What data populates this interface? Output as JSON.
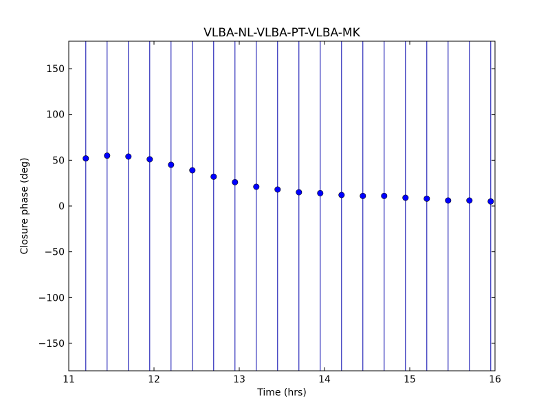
{
  "chart_data": {
    "type": "scatter",
    "title": "VLBA-NL-VLBA-PT-VLBA-MK",
    "xlabel": "Time (hrs)",
    "ylabel": "Closure phase (deg)",
    "xlim": [
      11,
      16
    ],
    "ylim": [
      -180,
      180
    ],
    "xticks": [
      11,
      12,
      13,
      14,
      15,
      16
    ],
    "yticks": [
      -150,
      -100,
      -50,
      0,
      50,
      100,
      150
    ],
    "ytick_labels": [
      "−150",
      "−100",
      "−50",
      "0",
      "50",
      "100",
      "150"
    ],
    "grid": false,
    "series": [
      {
        "marker_color": "#0000ff",
        "error_bar_color": "#0000aa",
        "x": [
          11.2,
          11.45,
          11.7,
          11.95,
          12.2,
          12.45,
          12.7,
          12.95,
          13.2,
          13.45,
          13.7,
          13.95,
          14.2,
          14.45,
          14.7,
          14.95,
          15.2,
          15.45,
          15.7,
          15.95
        ],
        "y": [
          52,
          55,
          54,
          51,
          45,
          39,
          32,
          26,
          21,
          18,
          15,
          14,
          12,
          11,
          11,
          9,
          8,
          6,
          6,
          5
        ],
        "y_error_low": [
          -180,
          -180,
          -180,
          -180,
          -180,
          -180,
          -180,
          -180,
          -180,
          -180,
          -180,
          -180,
          -180,
          -180,
          -180,
          -180,
          -180,
          -180,
          -180,
          -180
        ],
        "y_error_high": [
          180,
          180,
          180,
          180,
          180,
          180,
          180,
          180,
          180,
          180,
          180,
          180,
          180,
          180,
          180,
          180,
          180,
          180,
          180,
          180
        ]
      }
    ]
  }
}
